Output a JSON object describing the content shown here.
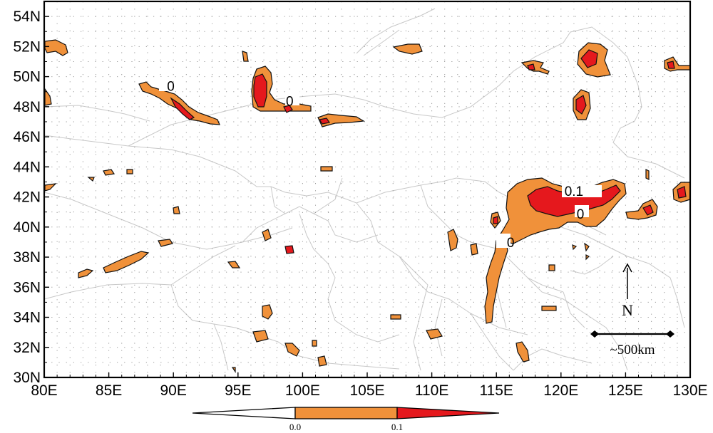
{
  "map": {
    "lon_range": [
      80,
      130
    ],
    "lat_range": [
      30,
      55
    ],
    "x_ticks": [
      "80E",
      "85E",
      "90E",
      "95E",
      "100E",
      "105E",
      "110E",
      "115E",
      "120E",
      "125E",
      "130E"
    ],
    "y_ticks": [
      "30N",
      "32N",
      "34N",
      "36N",
      "38N",
      "40N",
      "42N",
      "44N",
      "46N",
      "48N",
      "50N",
      "52N",
      "54N"
    ],
    "grid": "dotted",
    "colors": {
      "low": "#f0913a",
      "high": "#e5181d",
      "outline": "#111111",
      "border": "#c8c8c8"
    },
    "contour_labels": [
      {
        "text": "0",
        "lon": 89.8,
        "lat": 49.4
      },
      {
        "text": "0",
        "lon": 99.0,
        "lat": 48.4
      },
      {
        "text": "0.1",
        "lon": 121.0,
        "lat": 42.4
      },
      {
        "text": "0",
        "lon": 121.5,
        "lat": 40.9
      },
      {
        "text": "0",
        "lon": 116.1,
        "lat": 39.0
      }
    ]
  },
  "overlay": {
    "north_label": "N",
    "scale_label": "~500km"
  },
  "legend": {
    "labels": [
      "0.0",
      "0.1"
    ],
    "colors": [
      "#ffffff",
      "#f0913a",
      "#e5181d"
    ]
  }
}
